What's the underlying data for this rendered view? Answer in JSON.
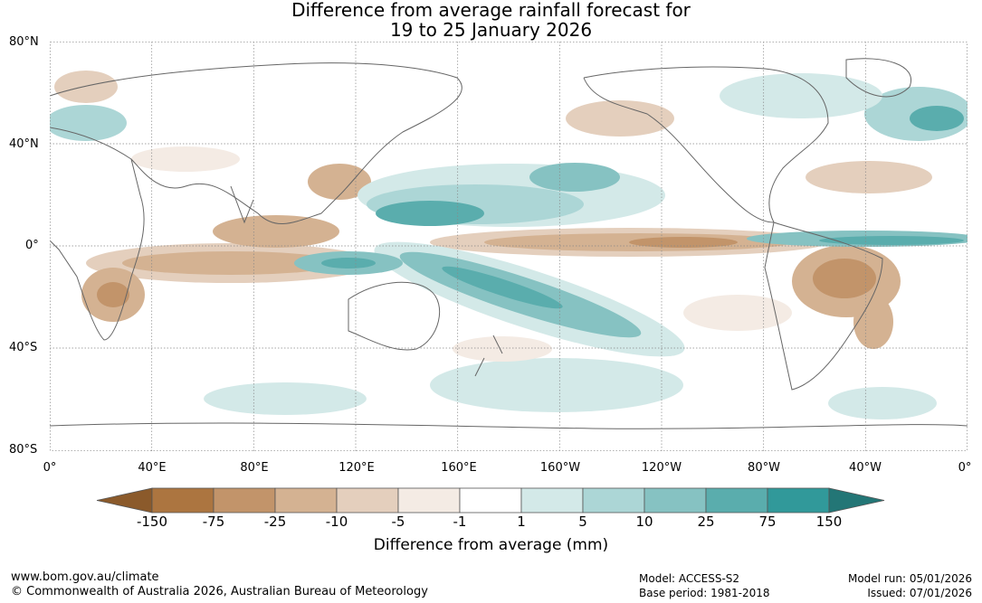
{
  "title_line1": "Difference from average rainfall forecast for",
  "title_line2": "19 to 25 January 2026",
  "lat_labels": [
    "80°N",
    "40°N",
    "0°",
    "40°S",
    "80°S"
  ],
  "lon_labels": [
    "0°",
    "40°E",
    "80°E",
    "120°E",
    "160°E",
    "160°W",
    "120°W",
    "80°W",
    "40°W",
    "0°"
  ],
  "legend": {
    "title": "Difference from average (mm)",
    "bins": [
      {
        "label": "-150",
        "color": "#ac7540"
      },
      {
        "label": "-75",
        "color": "#c2946a"
      },
      {
        "label": "-25",
        "color": "#d4b292"
      },
      {
        "label": "-10",
        "color": "#e4cfbd"
      },
      {
        "label": "-5",
        "color": "#f4ebe4"
      },
      {
        "label": "-1",
        "color": "#ffffff"
      },
      {
        "label": "1",
        "color": "#d3e9e8"
      },
      {
        "label": "5",
        "color": "#acd6d6"
      },
      {
        "label": "10",
        "color": "#86c2c2"
      },
      {
        "label": "25",
        "color": "#5aadad"
      },
      {
        "label": "75",
        "color": "#31999a"
      },
      {
        "label": "150",
        "color": ""
      }
    ],
    "under_color": "#8b5a2b",
    "over_color": "#237676"
  },
  "footer": {
    "website": "www.bom.gov.au/climate",
    "copyright": "© Commonwealth of Australia 2026, Australian Bureau of Meteorology",
    "model": "Model: ACCESS-S2",
    "base_period": "Base period: 1981-2018",
    "model_run": "Model run: 05/01/2026",
    "issued": "Issued: 07/01/2026"
  }
}
